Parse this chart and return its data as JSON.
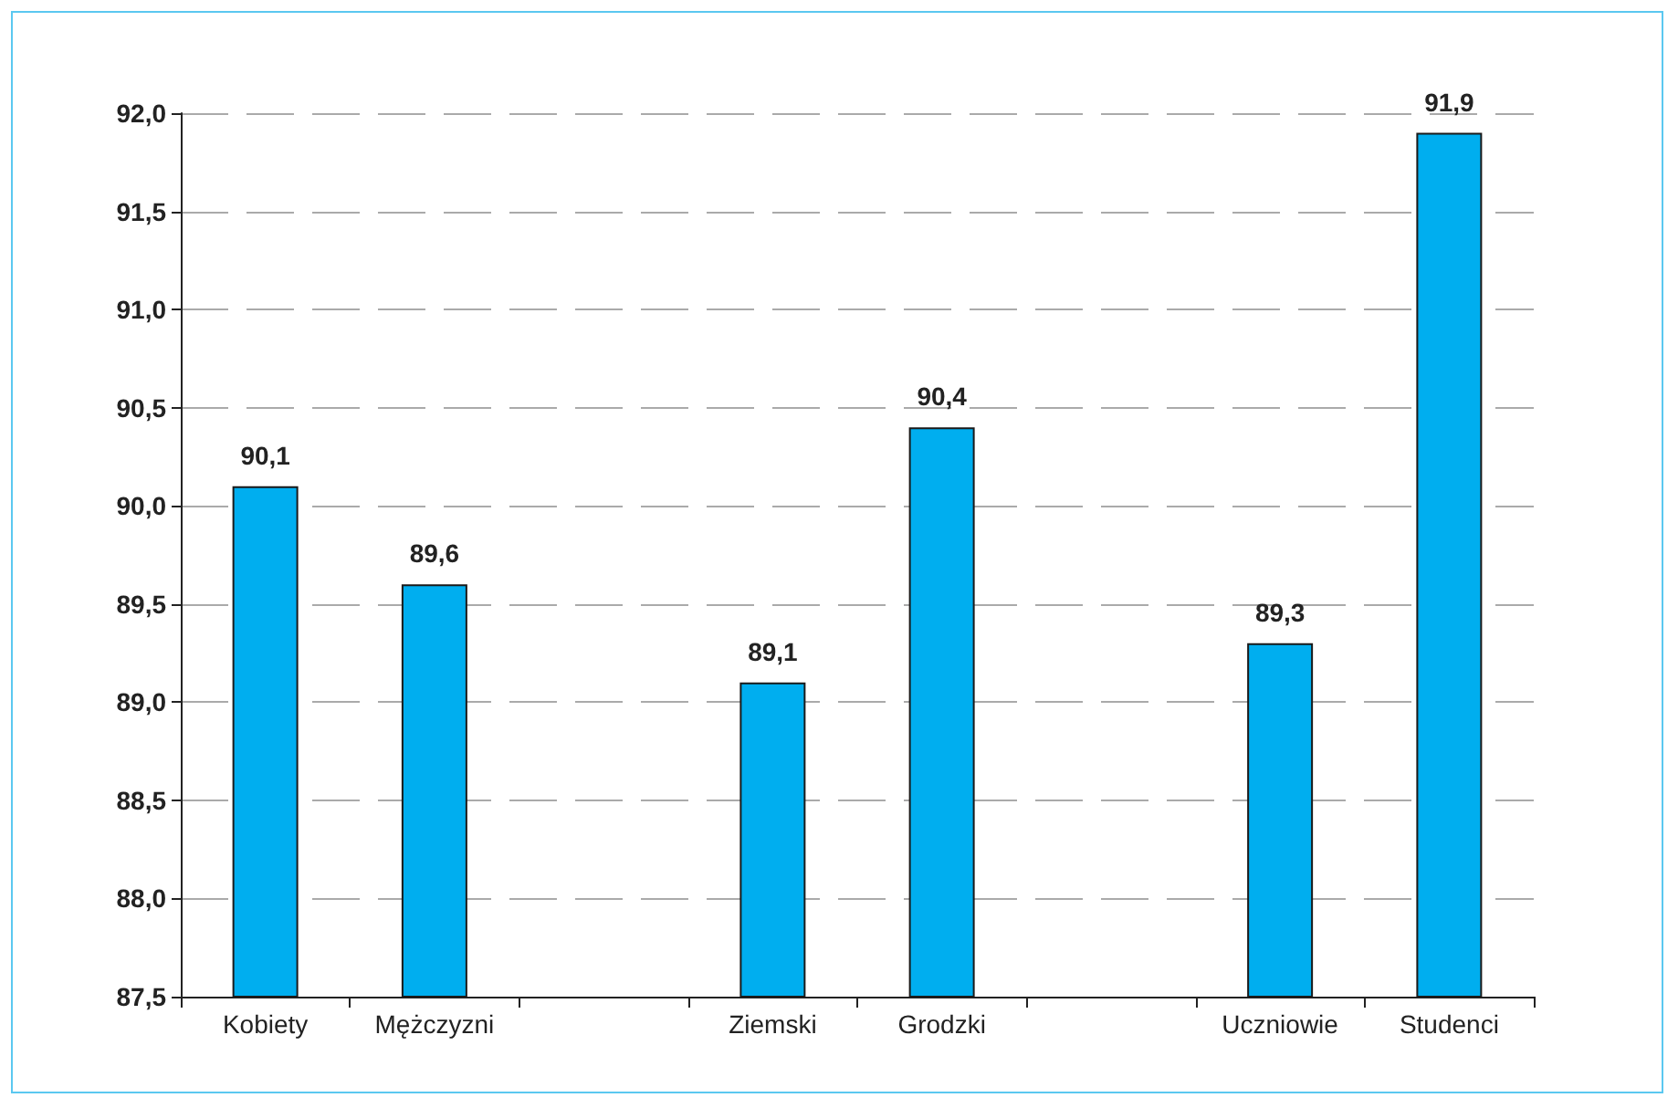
{
  "chart_data": {
    "type": "bar",
    "categories": [
      "Kobiety",
      "Mężczyzni",
      null,
      "Ziemski",
      "Grodzki",
      null,
      "Uczniowie",
      "Studenci"
    ],
    "values": [
      90.1,
      89.6,
      null,
      89.1,
      90.4,
      null,
      89.3,
      91.9
    ],
    "value_labels": [
      "90,1",
      "89,6",
      null,
      "89,1",
      "90,4",
      null,
      "89,3",
      "91,9"
    ],
    "color": "#00aeef",
    "ylim": [
      87.5,
      92.0
    ],
    "yticks": [
      {
        "value": 87.5,
        "label": "87,5"
      },
      {
        "value": 88.0,
        "label": "88,0"
      },
      {
        "value": 88.5,
        "label": "88,5"
      },
      {
        "value": 89.0,
        "label": "89,0"
      },
      {
        "value": 89.5,
        "label": "89,5"
      },
      {
        "value": 90.0,
        "label": "90,0"
      },
      {
        "value": 90.5,
        "label": "90,5"
      },
      {
        "value": 91.0,
        "label": "91,0"
      },
      {
        "value": 91.5,
        "label": "91,5"
      },
      {
        "value": 92.0,
        "label": "92,0"
      }
    ],
    "grid": "y"
  }
}
